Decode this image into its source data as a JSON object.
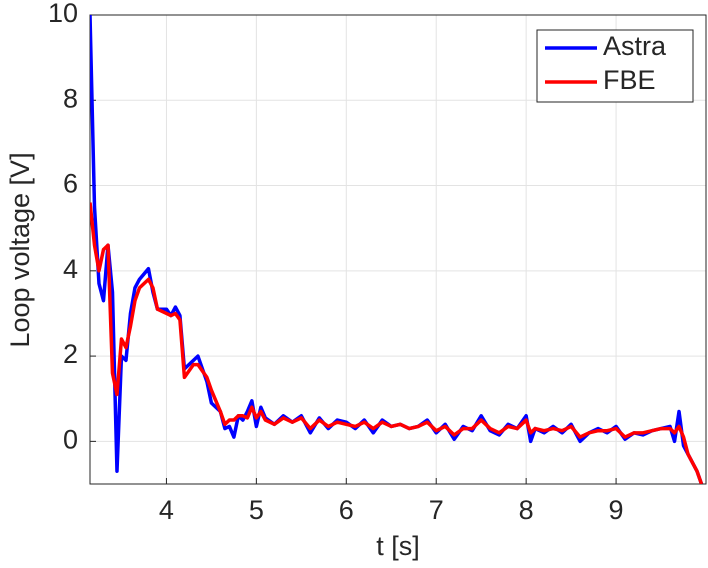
{
  "chart_data": {
    "type": "line",
    "xlabel": "t [s]",
    "ylabel": "Loop voltage [V]",
    "x": [
      3.15,
      3.2,
      3.25,
      3.3,
      3.35,
      3.4,
      3.45,
      3.5,
      3.55,
      3.6,
      3.65,
      3.7,
      3.8,
      3.85,
      3.9,
      4.0,
      4.05,
      4.1,
      4.15,
      4.2,
      4.3,
      4.35,
      4.45,
      4.5,
      4.6,
      4.65,
      4.7,
      4.75,
      4.8,
      4.85,
      4.9,
      4.95,
      5.0,
      5.05,
      5.1,
      5.2,
      5.3,
      5.4,
      5.5,
      5.6,
      5.7,
      5.8,
      5.9,
      6.0,
      6.1,
      6.2,
      6.3,
      6.4,
      6.5,
      6.6,
      6.7,
      6.8,
      6.9,
      7.0,
      7.1,
      7.2,
      7.3,
      7.4,
      7.5,
      7.6,
      7.7,
      7.8,
      7.9,
      8.0,
      8.05,
      8.1,
      8.2,
      8.3,
      8.4,
      8.5,
      8.6,
      8.7,
      8.8,
      8.9,
      9.0,
      9.1,
      9.2,
      9.3,
      9.4,
      9.5,
      9.6,
      9.65,
      9.7,
      9.75,
      9.8,
      9.9,
      9.95
    ],
    "series": [
      {
        "name": "Astra",
        "color": "#0000ff",
        "values": [
          10,
          5.5,
          3.7,
          3.3,
          4.6,
          3.5,
          -0.7,
          2.0,
          1.9,
          3.0,
          3.6,
          3.8,
          4.05,
          3.5,
          3.1,
          3.1,
          2.95,
          3.15,
          2.95,
          1.7,
          1.9,
          2.0,
          1.4,
          0.9,
          0.7,
          0.3,
          0.35,
          0.1,
          0.6,
          0.5,
          0.7,
          0.95,
          0.35,
          0.8,
          0.55,
          0.4,
          0.6,
          0.45,
          0.6,
          0.2,
          0.55,
          0.3,
          0.5,
          0.45,
          0.3,
          0.5,
          0.2,
          0.5,
          0.35,
          0.4,
          0.3,
          0.35,
          0.5,
          0.2,
          0.4,
          0.05,
          0.35,
          0.25,
          0.6,
          0.25,
          0.15,
          0.4,
          0.3,
          0.6,
          0.0,
          0.3,
          0.2,
          0.35,
          0.2,
          0.4,
          0.0,
          0.2,
          0.3,
          0.2,
          0.35,
          0.05,
          0.2,
          0.15,
          0.25,
          0.3,
          0.35,
          0.0,
          0.7,
          -0.1,
          -0.3,
          -0.7,
          -1.0
        ]
      },
      {
        "name": "FBE",
        "color": "#ff0000",
        "values": [
          5.6,
          4.6,
          4.0,
          4.5,
          4.6,
          1.6,
          1.1,
          2.4,
          2.2,
          2.7,
          3.3,
          3.6,
          3.8,
          3.6,
          3.1,
          3.0,
          2.95,
          3.0,
          2.85,
          1.5,
          1.8,
          1.8,
          1.5,
          1.2,
          0.7,
          0.4,
          0.5,
          0.5,
          0.6,
          0.6,
          0.55,
          0.8,
          0.55,
          0.7,
          0.5,
          0.4,
          0.55,
          0.45,
          0.55,
          0.3,
          0.5,
          0.35,
          0.45,
          0.4,
          0.35,
          0.45,
          0.3,
          0.45,
          0.35,
          0.4,
          0.3,
          0.35,
          0.45,
          0.25,
          0.35,
          0.15,
          0.3,
          0.3,
          0.5,
          0.3,
          0.2,
          0.35,
          0.3,
          0.5,
          0.2,
          0.3,
          0.25,
          0.3,
          0.25,
          0.35,
          0.1,
          0.2,
          0.25,
          0.25,
          0.3,
          0.1,
          0.2,
          0.2,
          0.25,
          0.3,
          0.3,
          0.2,
          0.35,
          0.1,
          -0.3,
          -0.7,
          -1.0
        ]
      }
    ],
    "xlim": [
      3.15,
      10
    ],
    "xticks": [
      4,
      5,
      6,
      7,
      8,
      9
    ],
    "ylim": [
      -1,
      10
    ],
    "yticks": [
      0,
      2,
      4,
      6,
      8,
      10
    ],
    "grid": true,
    "legend": "northeast"
  }
}
